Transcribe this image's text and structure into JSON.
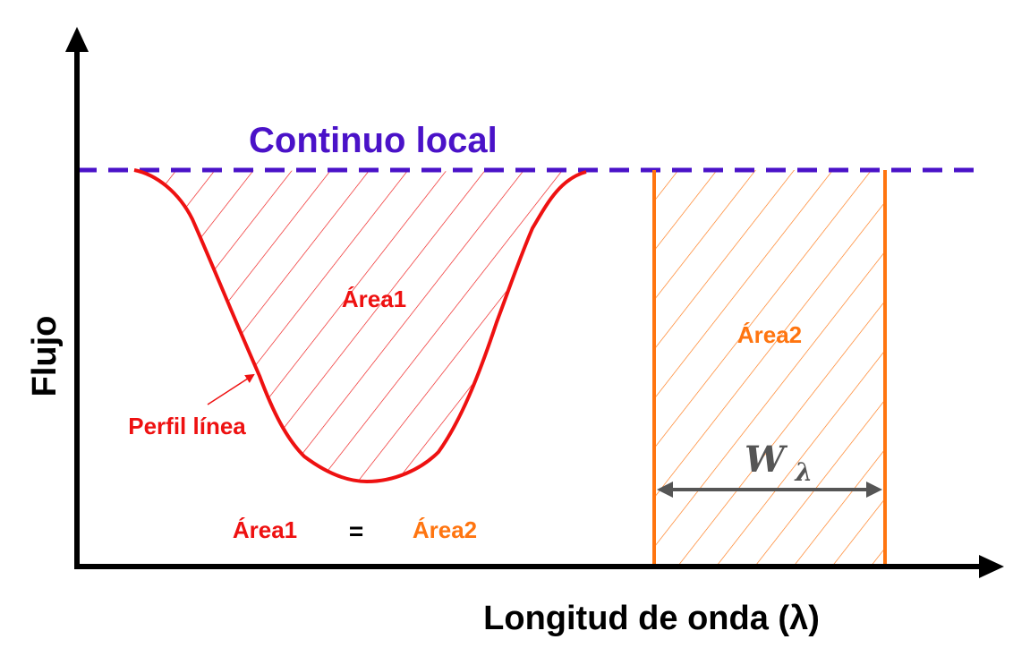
{
  "title": "Continuo local",
  "y_axis_label": "Flujo",
  "x_axis_label": "Longitud de onda (λ)",
  "line_profile_label": "Perfil línea",
  "area1_label": "Área1",
  "area2_label": "Área2",
  "equation": {
    "left": "Área1",
    "operator": "=",
    "right": "Área2"
  },
  "width_symbol": "W",
  "width_subscript": "λ",
  "colors": {
    "continuum": "#4a12c8",
    "profile": "#ee1111",
    "area2": "#ff7510",
    "axis": "#000000",
    "width_arrow": "#555555"
  }
}
